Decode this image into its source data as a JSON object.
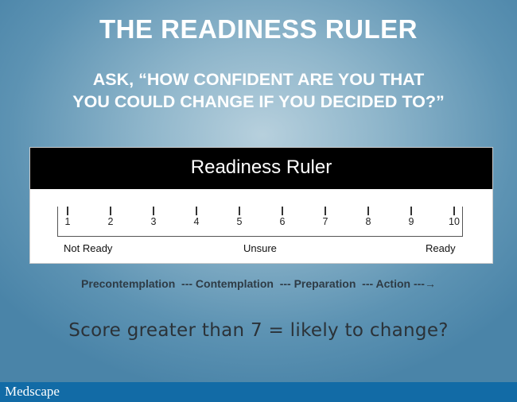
{
  "title": "THE READINESS RULER",
  "subtitle_line1": "ASK, “HOW CONFIDENT ARE YOU THAT",
  "subtitle_line2": "YOU COULD CHANGE IF YOU DECIDED TO?”",
  "ruler": {
    "header": "Readiness Ruler",
    "ticks": [
      "1",
      "2",
      "3",
      "4",
      "5",
      "6",
      "7",
      "8",
      "9",
      "10"
    ],
    "left_label": "Not Ready",
    "middle_label": "Unsure",
    "right_label": "Ready"
  },
  "stages": "Precontemplation  --- Contemplation  --- Preparation  --- Action ---→",
  "score_text": "Score greater than 7 = likely to change?",
  "footer": {
    "logo": "Medscape"
  }
}
